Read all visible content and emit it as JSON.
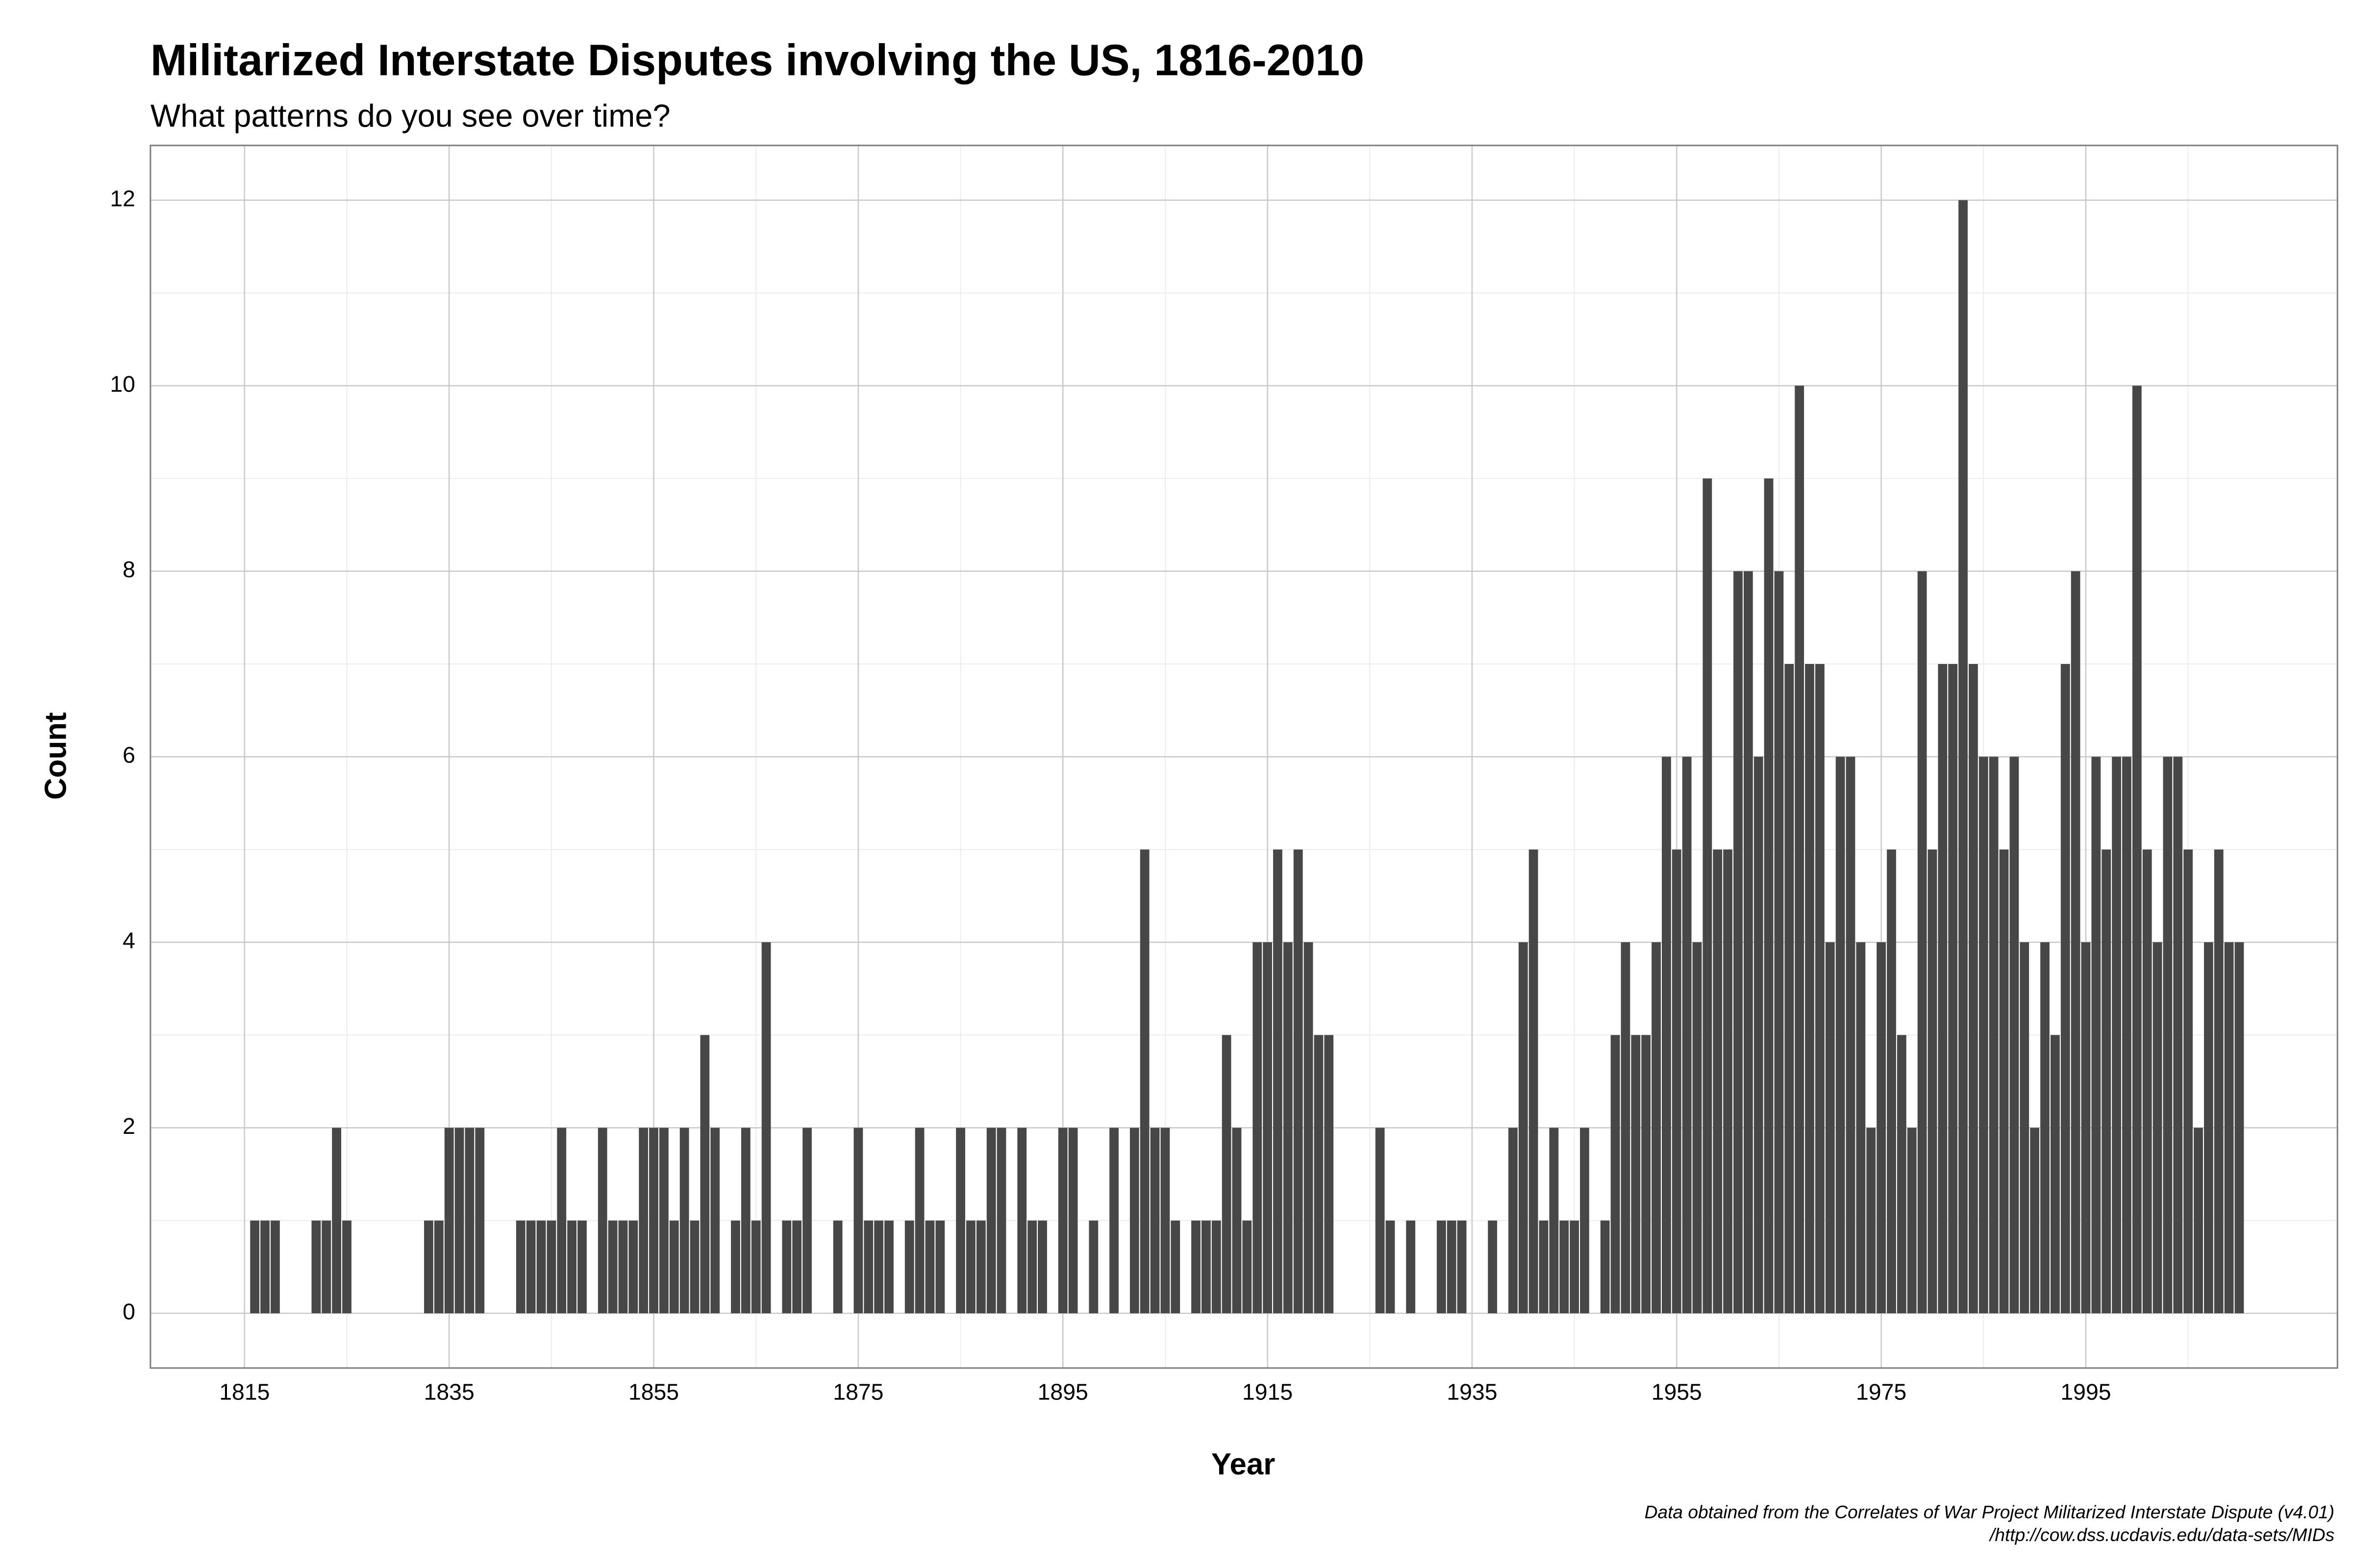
{
  "chart_data": {
    "type": "bar",
    "title": "Militarized Interstate Disputes involving the US, 1816-2010",
    "subtitle": "What patterns do you see over time?",
    "xlabel": "Year",
    "ylabel": "Count",
    "caption": [
      "Data obtained from the Correlates of War Project Militarized Interstate Dispute (v4.01)",
      "/http://cow.dss.ucdavis.edu/data-sets/MIDs"
    ],
    "color": "#474747",
    "grid": true,
    "x": [
      1816,
      1817,
      1818,
      1822,
      1823,
      1824,
      1825,
      1833,
      1834,
      1835,
      1836,
      1837,
      1838,
      1842,
      1843,
      1844,
      1845,
      1846,
      1847,
      1848,
      1850,
      1851,
      1852,
      1853,
      1854,
      1855,
      1856,
      1857,
      1858,
      1859,
      1860,
      1861,
      1863,
      1864,
      1865,
      1866,
      1868,
      1869,
      1870,
      1873,
      1875,
      1876,
      1877,
      1878,
      1880,
      1881,
      1882,
      1883,
      1885,
      1886,
      1887,
      1888,
      1889,
      1891,
      1892,
      1893,
      1895,
      1896,
      1898,
      1900,
      1902,
      1903,
      1904,
      1905,
      1906,
      1908,
      1909,
      1910,
      1911,
      1912,
      1913,
      1914,
      1915,
      1916,
      1917,
      1918,
      1919,
      1920,
      1921,
      1926,
      1927,
      1929,
      1932,
      1933,
      1934,
      1937,
      1939,
      1940,
      1941,
      1942,
      1943,
      1944,
      1945,
      1946,
      1948,
      1949,
      1950,
      1951,
      1952,
      1953,
      1954,
      1955,
      1956,
      1957,
      1958,
      1959,
      1960,
      1961,
      1962,
      1963,
      1964,
      1965,
      1966,
      1967,
      1968,
      1969,
      1970,
      1971,
      1972,
      1973,
      1974,
      1975,
      1976,
      1977,
      1978,
      1979,
      1980,
      1981,
      1982,
      1983,
      1984,
      1985,
      1986,
      1987,
      1988,
      1989,
      1990,
      1991,
      1992,
      1993,
      1994,
      1995,
      1996,
      1997,
      1998,
      1999,
      2000,
      2001,
      2002,
      2003,
      2004,
      2005,
      2006,
      2007,
      2008,
      2009,
      2010
    ],
    "values": [
      1,
      1,
      1,
      1,
      1,
      2,
      1,
      1,
      1,
      2,
      2,
      2,
      2,
      1,
      1,
      1,
      1,
      2,
      1,
      1,
      2,
      1,
      1,
      1,
      2,
      2,
      2,
      1,
      2,
      1,
      3,
      2,
      1,
      2,
      1,
      4,
      1,
      1,
      2,
      1,
      2,
      1,
      1,
      1,
      1,
      2,
      1,
      1,
      2,
      1,
      1,
      2,
      2,
      2,
      1,
      1,
      2,
      2,
      1,
      2,
      2,
      5,
      2,
      2,
      1,
      1,
      1,
      1,
      3,
      2,
      1,
      4,
      4,
      5,
      4,
      5,
      4,
      3,
      3,
      2,
      1,
      1,
      1,
      1,
      1,
      1,
      2,
      4,
      5,
      1,
      2,
      1,
      1,
      2,
      1,
      3,
      4,
      3,
      3,
      4,
      6,
      5,
      6,
      4,
      9,
      5,
      5,
      8,
      8,
      6,
      9,
      8,
      7,
      10,
      7,
      7,
      4,
      6,
      6,
      4,
      2,
      4,
      5,
      3,
      2,
      8,
      5,
      7,
      7,
      12,
      7,
      6,
      6,
      5,
      6,
      4,
      2,
      4,
      3,
      7,
      8,
      4,
      6,
      5,
      6,
      6,
      10,
      5,
      4,
      6,
      6,
      5,
      2,
      4,
      5,
      4,
      4
    ],
    "xlim": [
      1805.8,
      2019.6
    ],
    "ylim": [
      -0.59,
      12.59
    ],
    "xticks": [
      1815,
      1835,
      1855,
      1875,
      1895,
      1915,
      1935,
      1955,
      1975,
      1995
    ],
    "yticks": [
      0,
      2,
      4,
      6,
      8,
      10,
      12
    ]
  }
}
